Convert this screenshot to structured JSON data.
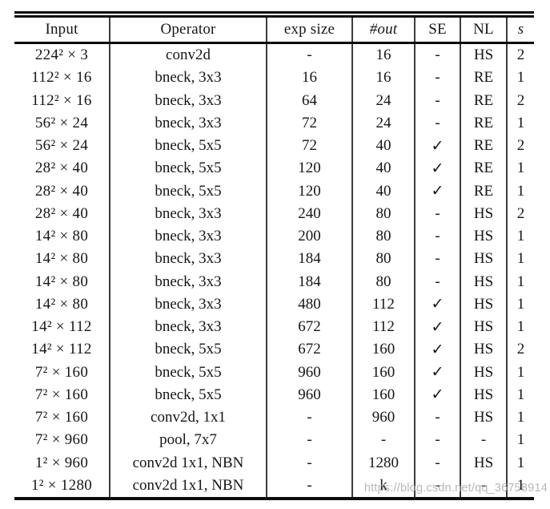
{
  "table": {
    "columns": [
      "Input",
      "Operator",
      "exp size",
      "#out",
      "SE",
      "NL",
      "s"
    ],
    "rows": [
      [
        "224² × 3",
        "conv2d",
        "-",
        "16",
        "-",
        "HS",
        "2"
      ],
      [
        "112² × 16",
        "bneck, 3x3",
        "16",
        "16",
        "-",
        "RE",
        "1"
      ],
      [
        "112² × 16",
        "bneck, 3x3",
        "64",
        "24",
        "-",
        "RE",
        "2"
      ],
      [
        "56² × 24",
        "bneck, 3x3",
        "72",
        "24",
        "-",
        "RE",
        "1"
      ],
      [
        "56² × 24",
        "bneck, 5x5",
        "72",
        "40",
        "✓",
        "RE",
        "2"
      ],
      [
        "28² × 40",
        "bneck, 5x5",
        "120",
        "40",
        "✓",
        "RE",
        "1"
      ],
      [
        "28² × 40",
        "bneck, 5x5",
        "120",
        "40",
        "✓",
        "RE",
        "1"
      ],
      [
        "28² × 40",
        "bneck, 3x3",
        "240",
        "80",
        "-",
        "HS",
        "2"
      ],
      [
        "14² × 80",
        "bneck, 3x3",
        "200",
        "80",
        "-",
        "HS",
        "1"
      ],
      [
        "14² × 80",
        "bneck, 3x3",
        "184",
        "80",
        "-",
        "HS",
        "1"
      ],
      [
        "14² × 80",
        "bneck, 3x3",
        "184",
        "80",
        "-",
        "HS",
        "1"
      ],
      [
        "14² × 80",
        "bneck, 3x3",
        "480",
        "112",
        "✓",
        "HS",
        "1"
      ],
      [
        "14² × 112",
        "bneck, 3x3",
        "672",
        "112",
        "✓",
        "HS",
        "1"
      ],
      [
        "14² × 112",
        "bneck, 5x5",
        "672",
        "160",
        "✓",
        "HS",
        "2"
      ],
      [
        "7² × 160",
        "bneck, 5x5",
        "960",
        "160",
        "✓",
        "HS",
        "1"
      ],
      [
        "7² × 160",
        "bneck, 5x5",
        "960",
        "160",
        "✓",
        "HS",
        "1"
      ],
      [
        "7² × 160",
        "conv2d, 1x1",
        "-",
        "960",
        "-",
        "HS",
        "1"
      ],
      [
        "7² × 960",
        "pool, 7x7",
        "-",
        "-",
        "-",
        "-",
        "1"
      ],
      [
        "1² × 960",
        "conv2d 1x1, NBN",
        "-",
        "1280",
        "-",
        "HS",
        "1"
      ],
      [
        "1² × 1280",
        "conv2d 1x1, NBN",
        "-",
        "k",
        "-",
        "-",
        "1"
      ]
    ]
  },
  "icons": {
    "checkmark": "✓"
  },
  "colors": {
    "rule": "#0c0c0c",
    "column_separator": "#3c3c3c",
    "text": "#161616",
    "watermark": "#b2b2b2"
  },
  "watermark": {
    "text": "https://blog.csdn.net/qq_36758914"
  }
}
